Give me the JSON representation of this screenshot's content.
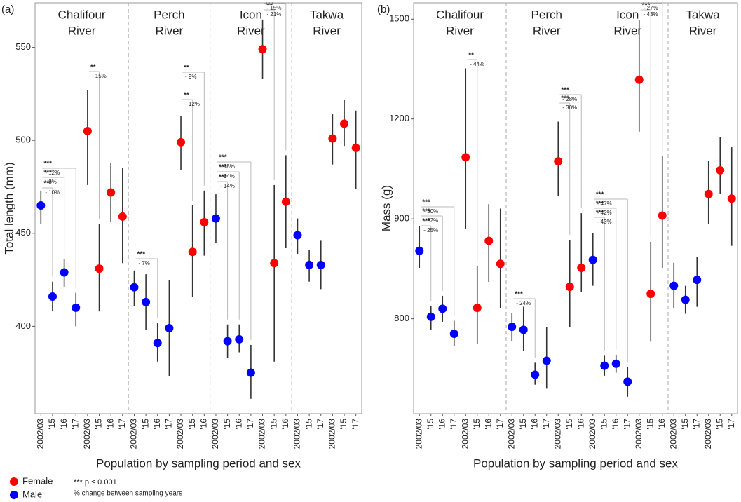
{
  "chart_data": [
    {
      "type": "dot-whisker",
      "panel_label": "(a)",
      "y_label": "Total length (mm)",
      "x_label": "Population by sampling period and sex",
      "rivers": [
        [
          "Chalifour",
          "River"
        ],
        [
          "Perch",
          "River"
        ],
        [
          "Icon",
          "River"
        ],
        [
          "Takwa",
          "River"
        ]
      ],
      "categories": [
        "2002/03",
        "'15",
        "'16",
        "'17",
        "2002/03",
        "'15",
        "'16",
        "'17",
        "2002/03",
        "'15",
        "'16",
        "'17",
        "2002/03",
        "'15",
        "'16",
        "2002/03",
        "'15",
        "'16",
        "'17",
        "2002/03",
        "'15",
        "'16",
        "2002/03",
        "'15",
        "'17",
        "2002/03",
        "'15",
        "'17"
      ],
      "ylim": [
        353,
        574
      ],
      "yticks": [
        400,
        450,
        500,
        550
      ],
      "series": [
        {
          "name": "Male",
          "color": "#0000ff",
          "values": [
            465,
            416,
            429,
            410,
            null,
            null,
            null,
            null,
            421,
            413,
            391,
            399,
            null,
            null,
            null,
            458,
            392,
            393,
            375,
            null,
            null,
            null,
            449,
            433,
            433,
            null,
            null,
            null
          ],
          "lower": [
            455,
            408,
            421,
            400,
            null,
            null,
            null,
            null,
            411,
            398,
            381,
            373,
            null,
            null,
            null,
            445,
            383,
            386,
            361,
            null,
            null,
            null,
            439,
            424,
            420,
            null,
            null,
            null
          ],
          "upper": [
            473,
            424,
            436,
            418,
            null,
            null,
            null,
            null,
            430,
            428,
            402,
            425,
            null,
            null,
            null,
            471,
            401,
            401,
            390,
            null,
            null,
            null,
            458,
            441,
            446,
            null,
            null,
            null
          ]
        },
        {
          "name": "Female",
          "color": "#ff0000",
          "values": [
            null,
            null,
            null,
            null,
            505,
            431,
            472,
            459,
            null,
            null,
            null,
            null,
            499,
            440,
            456,
            null,
            null,
            null,
            null,
            549,
            434,
            467,
            null,
            null,
            null,
            501,
            509,
            496
          ],
          "lower": [
            null,
            null,
            null,
            null,
            476,
            408,
            456,
            434,
            null,
            null,
            null,
            null,
            484,
            416,
            438,
            null,
            null,
            null,
            null,
            533,
            381,
            442,
            null,
            null,
            null,
            487,
            497,
            474
          ],
          "upper": [
            null,
            null,
            null,
            null,
            527,
            455,
            488,
            485,
            null,
            null,
            null,
            null,
            513,
            465,
            473,
            null,
            null,
            null,
            null,
            565,
            476,
            492,
            null,
            null,
            null,
            514,
            522,
            516
          ]
        }
      ],
      "comparisons": [
        {
          "label": "***",
          "change": "- 10%"
        },
        {
          "label": "***",
          "change": "- 8%"
        },
        {
          "label": "***",
          "change": "- 12%"
        },
        {
          "label": "**",
          "change": "- 15%"
        },
        {
          "label": "***",
          "change": "- 7%"
        },
        {
          "label": "**",
          "change": "- 12%"
        },
        {
          "label": "**",
          "change": "- 9%"
        },
        {
          "label": "***",
          "change": "- 14%"
        },
        {
          "label": "***",
          "change": "- 14%"
        },
        {
          "label": "***",
          "change": "- 18%"
        },
        {
          "label": "***",
          "change": "- 21%"
        },
        {
          "label": "***",
          "change": "- 15%"
        }
      ]
    },
    {
      "type": "dot-whisker",
      "panel_label": "(b)",
      "y_label": "Mass (g)",
      "x_label": "Population by sampling period and sex",
      "rivers": [
        [
          "Chalifour",
          "River"
        ],
        [
          "Perch",
          "River"
        ],
        [
          "Icon",
          "River"
        ],
        [
          "Takwa",
          "River"
        ]
      ],
      "categories": [
        "2002/03",
        "'15",
        "'16",
        "'17",
        "2002/03",
        "'15",
        "'16",
        "'17",
        "2002/03",
        "'15",
        "'16",
        "'17",
        "2002/03",
        "'15",
        "'16",
        "2002/03",
        "'15",
        "'16",
        "'17",
        "2002/03",
        "'15",
        "'16",
        "2002/03",
        "'15",
        "'17",
        "2002/03",
        "'15",
        "'17"
      ],
      "ylim": [
        705,
        1549
      ],
      "yticks": [
        800,
        900,
        1200,
        1500
      ],
      "scale": "piecewise",
      "series": [
        {
          "color": "#0000ff",
          "values": [
            868,
            802,
            810,
            785,
            null,
            null,
            null,
            null,
            792,
            789,
            744,
            758,
            null,
            null,
            null,
            859,
            753,
            755,
            737,
            null,
            null,
            null,
            833,
            819,
            839,
            null,
            null,
            null
          ],
          "lower": [
            851,
            789,
            797,
            773,
            null,
            null,
            null,
            null,
            778,
            768,
            734,
            730,
            null,
            null,
            null,
            833,
            743,
            746,
            722,
            null,
            null,
            null,
            811,
            805,
            812,
            null,
            null,
            null
          ],
          "upper": [
            893,
            813,
            823,
            798,
            null,
            null,
            null,
            null,
            806,
            812,
            756,
            792,
            null,
            null,
            null,
            886,
            763,
            764,
            752,
            null,
            null,
            null,
            856,
            833,
            862,
            null,
            null,
            null
          ]
        },
        {
          "color": "#ff0000",
          "values": [
            null,
            null,
            null,
            null,
            1085,
            811,
            878,
            855,
            null,
            null,
            null,
            null,
            1073,
            832,
            851,
            null,
            null,
            null,
            null,
            1318,
            825,
            910,
            null,
            null,
            null,
            975,
            1046,
            961
          ],
          "lower": [
            null,
            null,
            null,
            null,
            890,
            775,
            837,
            811,
            null,
            null,
            null,
            null,
            969,
            792,
            827,
            null,
            null,
            null,
            null,
            1162,
            777,
            851,
            null,
            null,
            null,
            895,
            975,
            873
          ],
          "upper": [
            null,
            null,
            null,
            null,
            1352,
            853,
            944,
            931,
            null,
            null,
            null,
            null,
            1192,
            879,
            917,
            null,
            null,
            null,
            null,
            1498,
            877,
            1090,
            null,
            null,
            null,
            1075,
            1146,
            1115
          ]
        }
      ],
      "comparisons": [
        {
          "label": "***",
          "change": "- 25%"
        },
        {
          "label": "***",
          "change": "- 22%"
        },
        {
          "label": "***",
          "change": "- 30%"
        },
        {
          "label": "**",
          "change": "- 44%"
        },
        {
          "label": "***",
          "change": "- 24%"
        },
        {
          "label": "***",
          "change": "- 30%"
        },
        {
          "label": "***",
          "change": "- 28%"
        },
        {
          "label": "***",
          "change": "- 43%"
        },
        {
          "label": "***",
          "change": "- 42%"
        },
        {
          "label": "***",
          "change": "- 47%"
        },
        {
          "label": "***",
          "change": "- 43%"
        },
        {
          "label": "**",
          "change": "- 27%"
        }
      ]
    }
  ],
  "note": {
    "significance": "*** p ≤ 0.001",
    "change": "% change between sampling years"
  }
}
